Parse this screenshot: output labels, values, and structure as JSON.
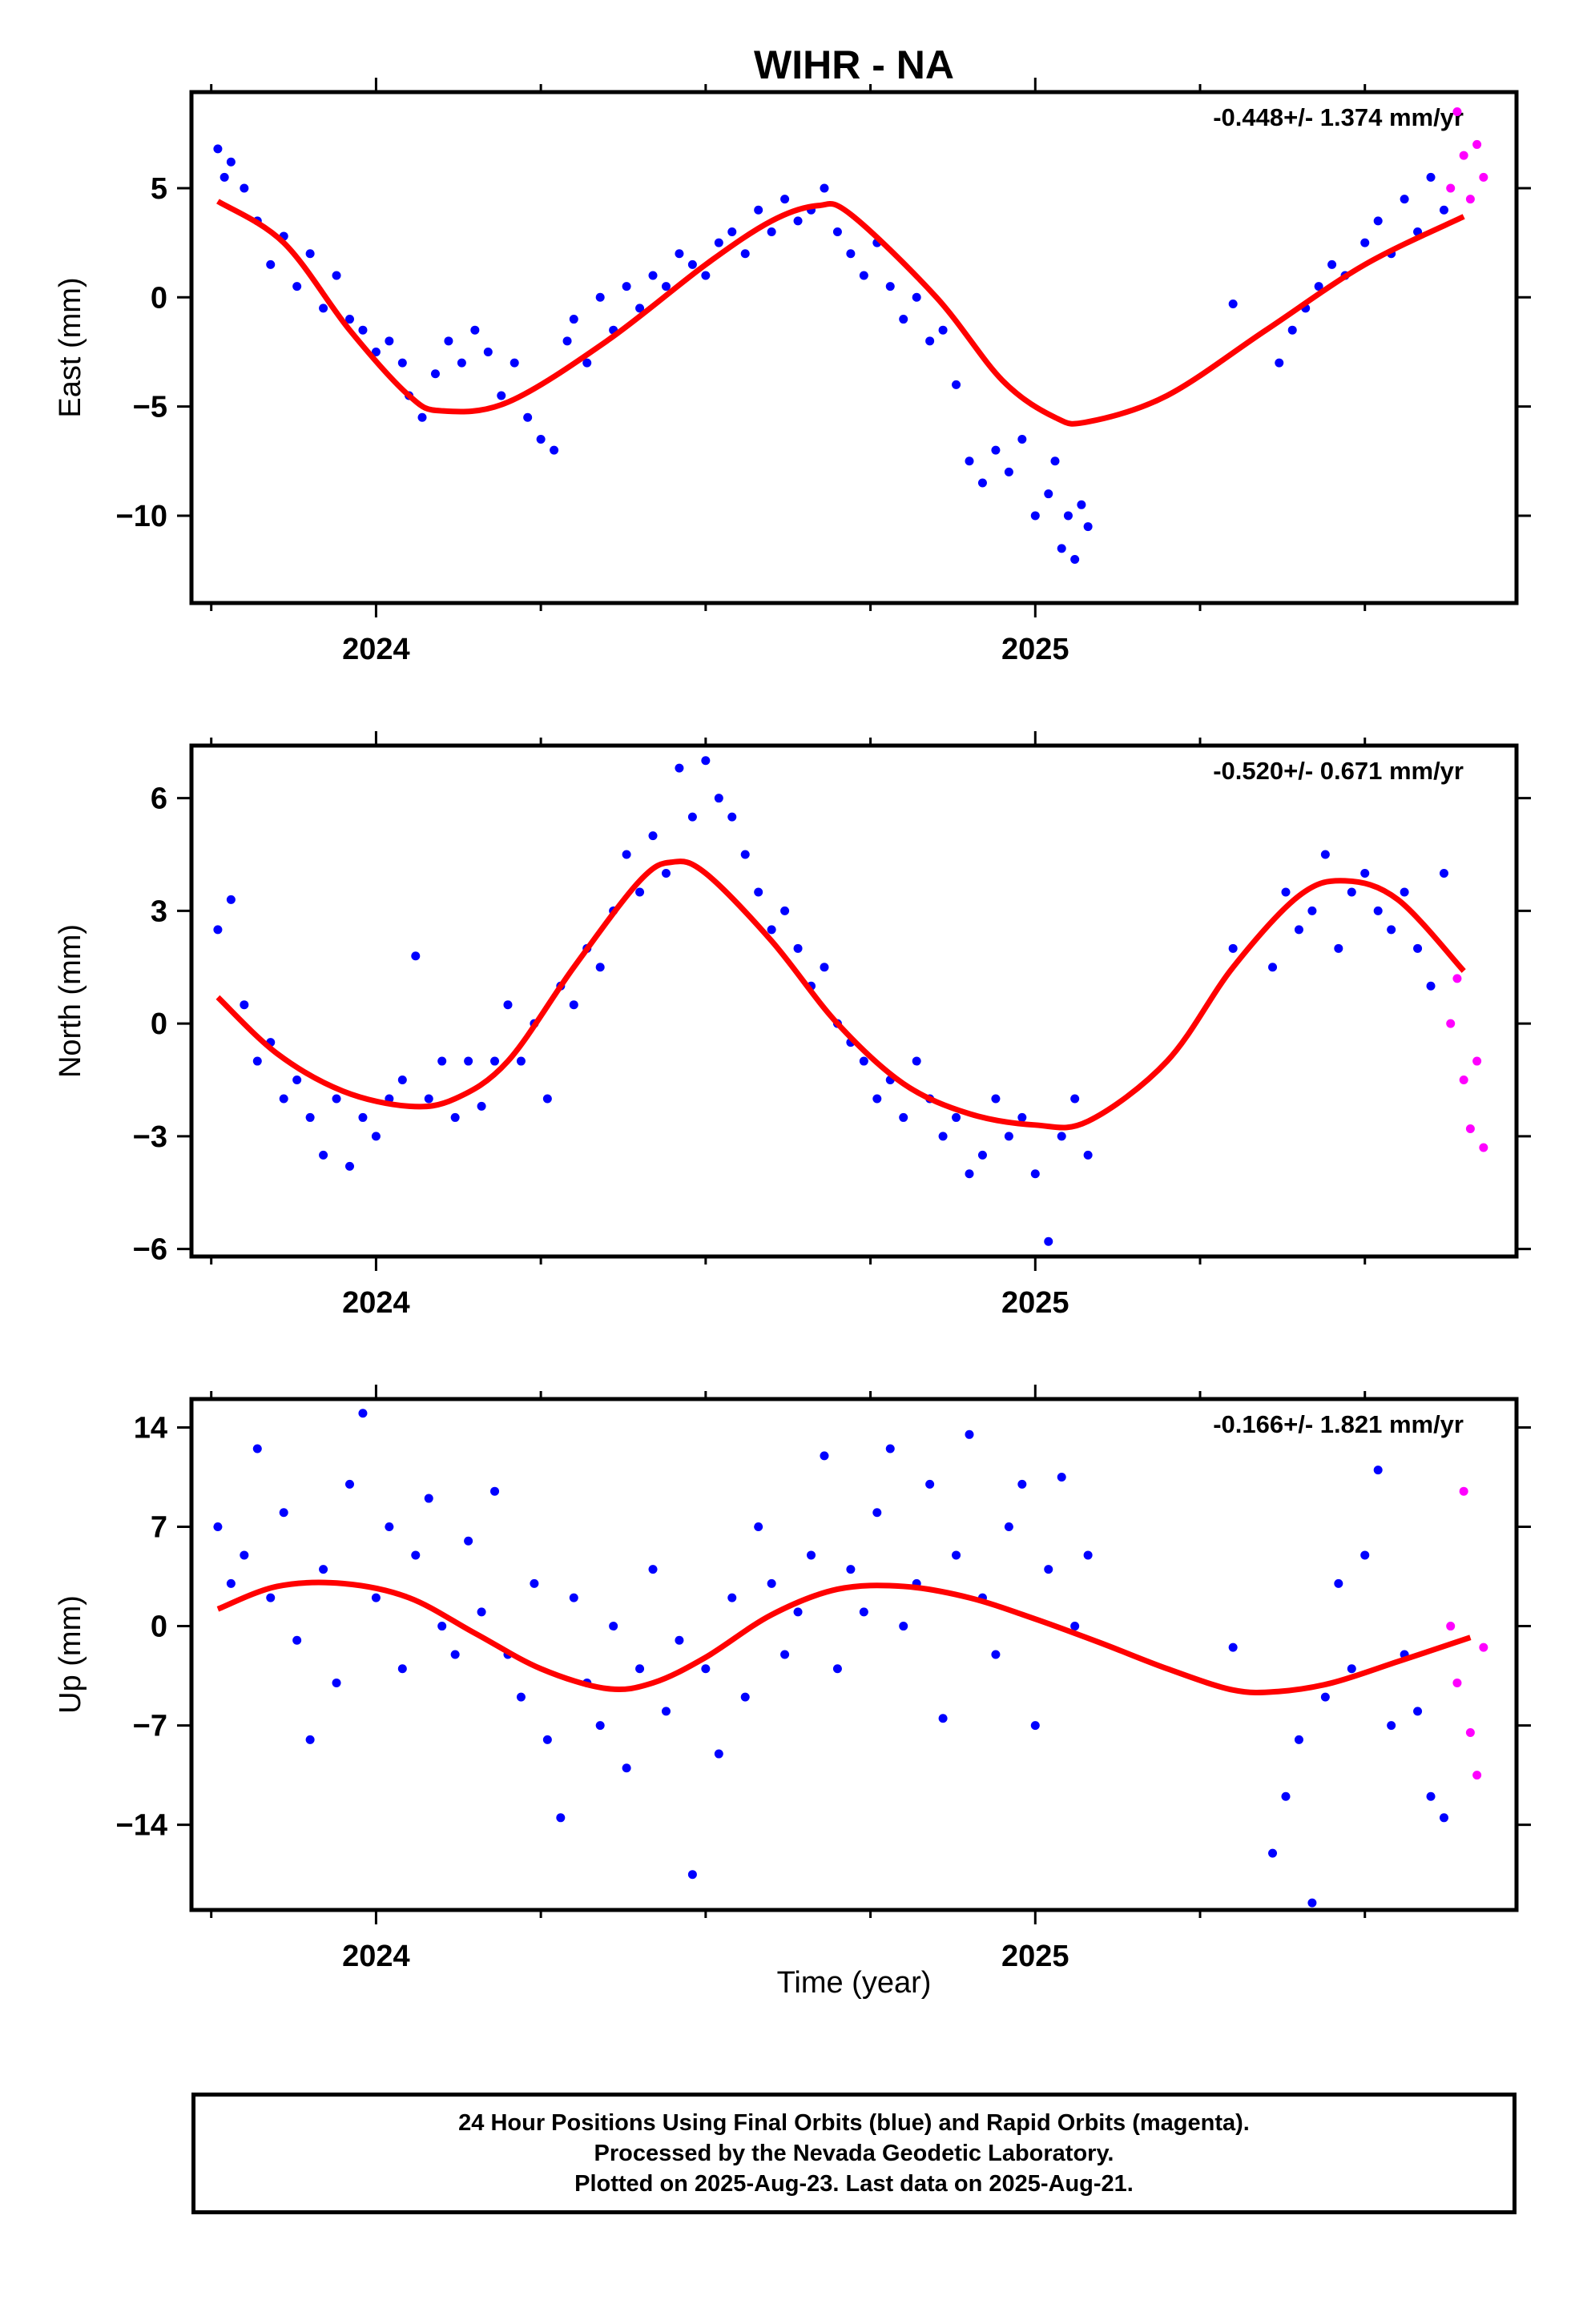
{
  "title": "WIHR - NA",
  "xlabel": "Time (year)",
  "colors": {
    "final": "#0000ff",
    "rapid": "#ff00ff",
    "model": "#ff0000"
  },
  "footer": {
    "line1": "24 Hour Positions Using Final Orbits (blue) and Rapid Orbits (magenta).",
    "line2": "Processed by the Nevada Geodetic Laboratory.",
    "line3": "Plotted on 2025-Aug-23. Last data on 2025-Aug-21."
  },
  "chart_data": [
    {
      "type": "scatter",
      "ylabel": "East (mm)",
      "rate": "-0.448+/- 1.374 mm/yr",
      "xlim": [
        2023.72,
        2025.73
      ],
      "ylim": [
        -14.0,
        9.4
      ],
      "yticks": [
        5,
        0,
        -5,
        -10
      ],
      "ytick_labels": [
        "5",
        "0",
        "−5",
        "−10"
      ],
      "xticks": [
        2024,
        2025
      ],
      "xtick_labels": [
        "2024",
        "2025"
      ],
      "model": {
        "x": [
          2023.76,
          2023.86,
          2023.96,
          2024.05,
          2024.1,
          2024.2,
          2024.35,
          2024.5,
          2024.6,
          2024.67,
          2024.72,
          2024.85,
          2024.95,
          2025.03,
          2025.08,
          2025.2,
          2025.35,
          2025.5,
          2025.65
        ],
        "y": [
          4.4,
          2.5,
          -1.5,
          -4.5,
          -5.2,
          -4.8,
          -2.0,
          1.5,
          3.5,
          4.2,
          3.8,
          0.0,
          -3.8,
          -5.5,
          -5.7,
          -4.5,
          -1.5,
          1.5,
          3.7
        ]
      },
      "final": {
        "x": [
          2023.76,
          2023.77,
          2023.78,
          2023.8,
          2023.82,
          2023.84,
          2023.86,
          2023.88,
          2023.9,
          2023.92,
          2023.94,
          2023.96,
          2023.98,
          2024.0,
          2024.02,
          2024.04,
          2024.05,
          2024.07,
          2024.09,
          2024.11,
          2024.13,
          2024.15,
          2024.17,
          2024.19,
          2024.21,
          2024.23,
          2024.25,
          2024.27,
          2024.29,
          2024.3,
          2024.32,
          2024.34,
          2024.36,
          2024.38,
          2024.4,
          2024.42,
          2024.44,
          2024.46,
          2024.48,
          2024.5,
          2024.52,
          2024.54,
          2024.56,
          2024.58,
          2024.6,
          2024.62,
          2024.64,
          2024.66,
          2024.68,
          2024.7,
          2024.72,
          2024.74,
          2024.76,
          2024.78,
          2024.8,
          2024.82,
          2024.84,
          2024.86,
          2024.88,
          2024.9,
          2024.92,
          2024.94,
          2024.96,
          2024.98,
          2025.0,
          2025.02,
          2025.03,
          2025.04,
          2025.05,
          2025.06,
          2025.07,
          2025.08,
          2025.3,
          2025.37,
          2025.39,
          2025.41,
          2025.43,
          2025.45,
          2025.47,
          2025.5,
          2025.52,
          2025.54,
          2025.56,
          2025.58,
          2025.6,
          2025.62
        ],
        "y": [
          6.8,
          5.5,
          6.2,
          5.0,
          3.5,
          1.5,
          2.8,
          0.5,
          2.0,
          -0.5,
          1.0,
          -1.0,
          -1.5,
          -2.5,
          -2.0,
          -3.0,
          -4.5,
          -5.5,
          -3.5,
          -2.0,
          -3.0,
          -1.5,
          -2.5,
          -4.5,
          -3.0,
          -5.5,
          -6.5,
          -7.0,
          -2.0,
          -1.0,
          -3.0,
          0.0,
          -1.5,
          0.5,
          -0.5,
          1.0,
          0.5,
          2.0,
          1.5,
          1.0,
          2.5,
          3.0,
          2.0,
          4.0,
          3.0,
          4.5,
          3.5,
          4.0,
          5.0,
          3.0,
          2.0,
          1.0,
          2.5,
          0.5,
          -1.0,
          0.0,
          -2.0,
          -1.5,
          -4.0,
          -7.5,
          -8.5,
          -7.0,
          -8.0,
          -6.5,
          -10.0,
          -9.0,
          -7.5,
          -11.5,
          -10.0,
          -12.0,
          -9.5,
          -10.5,
          -0.3,
          -3.0,
          -1.5,
          -0.5,
          0.5,
          1.5,
          1.0,
          2.5,
          3.5,
          2.0,
          4.5,
          3.0,
          5.5,
          4.0
        ],
        "dates_note": ""
      },
      "rapid": {
        "x": [
          2025.63,
          2025.64,
          2025.65,
          2025.66,
          2025.67,
          2025.68
        ],
        "y": [
          5.0,
          8.5,
          6.5,
          4.5,
          7.0,
          5.5
        ]
      }
    },
    {
      "type": "scatter",
      "ylabel": "North (mm)",
      "rate": "-0.520+/- 0.671 mm/yr",
      "xlim": [
        2023.72,
        2025.73
      ],
      "ylim": [
        -6.2,
        7.4
      ],
      "yticks": [
        6,
        3,
        0,
        -3,
        -6
      ],
      "ytick_labels": [
        "6",
        "3",
        "0",
        "−3",
        "−6"
      ],
      "xticks": [
        2024,
        2025
      ],
      "xtick_labels": [
        "2024",
        "2025"
      ],
      "model": {
        "x": [
          2023.76,
          2023.85,
          2023.95,
          2024.05,
          2024.12,
          2024.2,
          2024.3,
          2024.4,
          2024.45,
          2024.5,
          2024.6,
          2024.7,
          2024.8,
          2024.9,
          2025.0,
          2025.08,
          2025.2,
          2025.3,
          2025.4,
          2025.47,
          2025.55,
          2025.65
        ],
        "y": [
          0.7,
          -0.8,
          -1.8,
          -2.2,
          -2.0,
          -1.0,
          1.5,
          3.8,
          4.3,
          4.0,
          2.2,
          0.0,
          -1.6,
          -2.4,
          -2.7,
          -2.6,
          -1.0,
          1.5,
          3.4,
          3.8,
          3.3,
          1.4
        ]
      },
      "final": {
        "x": [
          2023.76,
          2023.78,
          2023.8,
          2023.82,
          2023.84,
          2023.86,
          2023.88,
          2023.9,
          2023.92,
          2023.94,
          2023.96,
          2023.98,
          2024.0,
          2024.02,
          2024.04,
          2024.06,
          2024.08,
          2024.1,
          2024.12,
          2024.14,
          2024.16,
          2024.18,
          2024.2,
          2024.22,
          2024.24,
          2024.26,
          2024.28,
          2024.3,
          2024.32,
          2024.34,
          2024.36,
          2024.38,
          2024.4,
          2024.42,
          2024.44,
          2024.46,
          2024.48,
          2024.5,
          2024.52,
          2024.54,
          2024.56,
          2024.58,
          2024.6,
          2024.62,
          2024.64,
          2024.66,
          2024.68,
          2024.7,
          2024.72,
          2024.74,
          2024.76,
          2024.78,
          2024.8,
          2024.82,
          2024.84,
          2024.86,
          2024.88,
          2024.9,
          2024.92,
          2024.94,
          2024.96,
          2024.98,
          2025.0,
          2025.02,
          2025.04,
          2025.06,
          2025.08,
          2025.3,
          2025.36,
          2025.38,
          2025.4,
          2025.42,
          2025.44,
          2025.46,
          2025.48,
          2025.5,
          2025.52,
          2025.54,
          2025.56,
          2025.58,
          2025.6,
          2025.62
        ],
        "y": [
          2.5,
          3.3,
          0.5,
          -1.0,
          -0.5,
          -2.0,
          -1.5,
          -2.5,
          -3.5,
          -2.0,
          -3.8,
          -2.5,
          -3.0,
          -2.0,
          -1.5,
          1.8,
          -2.0,
          -1.0,
          -2.5,
          -1.0,
          -2.2,
          -1.0,
          0.5,
          -1.0,
          0.0,
          -2.0,
          1.0,
          0.5,
          2.0,
          1.5,
          3.0,
          4.5,
          3.5,
          5.0,
          4.0,
          6.8,
          5.5,
          7.0,
          6.0,
          5.5,
          4.5,
          3.5,
          2.5,
          3.0,
          2.0,
          1.0,
          1.5,
          0.0,
          -0.5,
          -1.0,
          -2.0,
          -1.5,
          -2.5,
          -1.0,
          -2.0,
          -3.0,
          -2.5,
          -4.0,
          -3.5,
          -2.0,
          -3.0,
          -2.5,
          -4.0,
          -5.8,
          -3.0,
          -2.0,
          -3.5,
          2.0,
          1.5,
          3.5,
          2.5,
          3.0,
          4.5,
          2.0,
          3.5,
          4.0,
          3.0,
          2.5,
          3.5,
          2.0,
          1.0,
          4.0
        ]
      },
      "rapid": {
        "x": [
          2025.63,
          2025.64,
          2025.65,
          2025.66,
          2025.67,
          2025.68
        ],
        "y": [
          0.0,
          1.2,
          -1.5,
          -2.8,
          -1.0,
          -3.3
        ]
      }
    },
    {
      "type": "scatter",
      "ylabel": "Up (mm)",
      "rate": "-0.166+/- 1.821 mm/yr",
      "xlim": [
        2023.72,
        2025.73
      ],
      "ylim": [
        -20.0,
        16.0
      ],
      "yticks": [
        14,
        7,
        0,
        -7,
        -14
      ],
      "ytick_labels": [
        "14",
        "7",
        "0",
        "−7",
        "−14"
      ],
      "xticks": [
        2024,
        2025
      ],
      "xtick_labels": [
        "2024",
        "2025"
      ],
      "model": {
        "x": [
          2023.76,
          2023.85,
          2023.95,
          2024.05,
          2024.15,
          2024.25,
          2024.35,
          2024.42,
          2024.5,
          2024.6,
          2024.7,
          2024.8,
          2024.9,
          2025.0,
          2025.1,
          2025.2,
          2025.3,
          2025.37,
          2025.45,
          2025.55,
          2025.66
        ],
        "y": [
          1.2,
          2.8,
          3.0,
          2.0,
          -0.5,
          -3.0,
          -4.4,
          -4.0,
          -2.2,
          0.8,
          2.6,
          2.8,
          2.0,
          0.5,
          -1.2,
          -3.0,
          -4.5,
          -4.6,
          -4.0,
          -2.5,
          -0.8
        ]
      },
      "final": {
        "x": [
          2023.76,
          2023.78,
          2023.8,
          2023.82,
          2023.84,
          2023.86,
          2023.88,
          2023.9,
          2023.92,
          2023.94,
          2023.96,
          2023.98,
          2024.0,
          2024.02,
          2024.04,
          2024.06,
          2024.08,
          2024.1,
          2024.12,
          2024.14,
          2024.16,
          2024.18,
          2024.2,
          2024.22,
          2024.24,
          2024.26,
          2024.28,
          2024.3,
          2024.32,
          2024.34,
          2024.36,
          2024.38,
          2024.4,
          2024.42,
          2024.44,
          2024.46,
          2024.48,
          2024.5,
          2024.52,
          2024.54,
          2024.56,
          2024.58,
          2024.6,
          2024.62,
          2024.64,
          2024.66,
          2024.68,
          2024.7,
          2024.72,
          2024.74,
          2024.76,
          2024.78,
          2024.8,
          2024.82,
          2024.84,
          2024.86,
          2024.88,
          2024.9,
          2024.92,
          2024.94,
          2024.96,
          2024.98,
          2025.0,
          2025.02,
          2025.04,
          2025.06,
          2025.08,
          2025.3,
          2025.36,
          2025.38,
          2025.4,
          2025.42,
          2025.44,
          2025.46,
          2025.48,
          2025.5,
          2025.52,
          2025.54,
          2025.56,
          2025.58,
          2025.6,
          2025.62
        ],
        "y": [
          7.0,
          3.0,
          5.0,
          12.5,
          2.0,
          8.0,
          -1.0,
          -8.0,
          4.0,
          -4.0,
          10.0,
          15.0,
          2.0,
          7.0,
          -3.0,
          5.0,
          9.0,
          0.0,
          -2.0,
          6.0,
          1.0,
          9.5,
          -2.0,
          -5.0,
          3.0,
          -8.0,
          -13.5,
          2.0,
          -4.0,
          -7.0,
          0.0,
          -10.0,
          -3.0,
          4.0,
          -6.0,
          -1.0,
          -17.5,
          -3.0,
          -9.0,
          2.0,
          -5.0,
          7.0,
          3.0,
          -2.0,
          1.0,
          5.0,
          12.0,
          -3.0,
          4.0,
          1.0,
          8.0,
          12.5,
          0.0,
          3.0,
          10.0,
          -6.5,
          5.0,
          13.5,
          2.0,
          -2.0,
          7.0,
          10.0,
          -7.0,
          4.0,
          10.5,
          0.0,
          5.0,
          -1.5,
          -16.0,
          -12.0,
          -8.0,
          -19.5,
          -5.0,
          3.0,
          -3.0,
          5.0,
          11.0,
          -7.0,
          -2.0,
          -6.0,
          -12.0,
          -13.5
        ]
      },
      "rapid": {
        "x": [
          2025.63,
          2025.64,
          2025.65,
          2025.66,
          2025.67,
          2025.68
        ],
        "y": [
          0.0,
          -4.0,
          9.5,
          -7.5,
          -10.5,
          -1.5
        ]
      }
    }
  ]
}
